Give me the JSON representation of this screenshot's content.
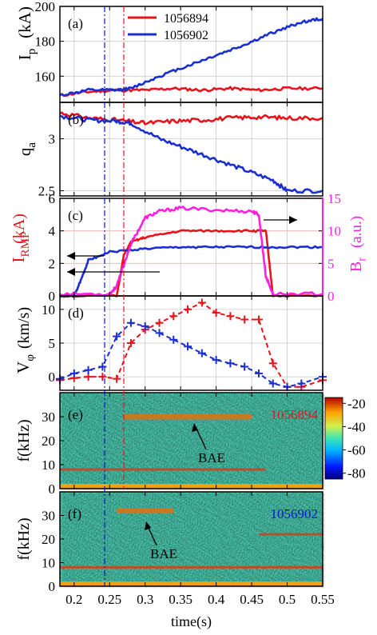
{
  "colors": {
    "red": "#e8141c",
    "blue": "#1a2fd0",
    "magenta": "#ff1fe0",
    "navy": "#0a17c8",
    "black": "#000000",
    "grid": "#c8c8c8",
    "refline": "#f2b8b8"
  },
  "chart_data": [
    {
      "type": "line",
      "panel_label": "(a)",
      "ylabel": "I_p(kA)",
      "ylim": [
        145,
        200
      ],
      "yticks": [
        "160",
        "180",
        "200"
      ],
      "legend": [
        "1056894",
        "1056902"
      ],
      "series": [
        {
          "name": "1056894",
          "color": "#e8141c",
          "x": [
            0.18,
            0.22,
            0.26,
            0.3,
            0.34,
            0.38,
            0.42,
            0.46,
            0.5,
            0.55
          ],
          "y": [
            149,
            151,
            152,
            152,
            153,
            152,
            153,
            152,
            153,
            153
          ]
        },
        {
          "name": "1056902",
          "color": "#1a2fd0",
          "x": [
            0.18,
            0.22,
            0.26,
            0.28,
            0.32,
            0.36,
            0.4,
            0.44,
            0.48,
            0.52,
            0.55
          ],
          "y": [
            149,
            152,
            152,
            153,
            160,
            166,
            172,
            178,
            185,
            191,
            193
          ]
        }
      ]
    },
    {
      "type": "line",
      "panel_label": "(b)",
      "ylabel": "q_a",
      "ylim": [
        2.45,
        3.35
      ],
      "yticks": [
        "2.5",
        "3"
      ],
      "series": [
        {
          "name": "1056894",
          "color": "#e8141c",
          "x": [
            0.18,
            0.22,
            0.26,
            0.3,
            0.34,
            0.38,
            0.42,
            0.46,
            0.5,
            0.55
          ],
          "y": [
            3.25,
            3.2,
            3.18,
            3.15,
            3.17,
            3.18,
            3.2,
            3.21,
            3.2,
            3.2
          ]
        },
        {
          "name": "1056902",
          "color": "#1a2fd0",
          "x": [
            0.18,
            0.22,
            0.26,
            0.28,
            0.32,
            0.36,
            0.4,
            0.44,
            0.48,
            0.5,
            0.55
          ],
          "y": [
            3.22,
            3.18,
            3.17,
            3.15,
            3.0,
            2.9,
            2.8,
            2.7,
            2.6,
            2.5,
            2.5
          ]
        }
      ]
    },
    {
      "type": "line",
      "panel_label": "(c)",
      "ylabel": "I_RMP(kA)",
      "ylabel_right": "B_r(a.u.)",
      "ylim": [
        0,
        6
      ],
      "ylim_right": [
        0,
        15
      ],
      "yticks": [
        "0",
        "2",
        "4",
        "6"
      ],
      "yticks_right": [
        "0",
        "5",
        "10",
        "15"
      ],
      "series": [
        {
          "name": "I_RMP 1056894",
          "color": "#e8141c",
          "x": [
            0.18,
            0.26,
            0.27,
            0.28,
            0.3,
            0.35,
            0.4,
            0.45,
            0.47,
            0.48,
            0.55
          ],
          "y": [
            0,
            0,
            2.5,
            3.3,
            3.6,
            4.0,
            4.0,
            4.0,
            4.0,
            0,
            0
          ]
        },
        {
          "name": "I_RMP 1056902",
          "color": "#1a2fd0",
          "x": [
            0.18,
            0.2,
            0.21,
            0.22,
            0.25,
            0.3,
            0.35,
            0.4,
            0.45,
            0.5,
            0.55
          ],
          "y": [
            0,
            0,
            1.0,
            2.2,
            2.7,
            2.9,
            3.0,
            3.0,
            3.0,
            3.0,
            3.0
          ]
        },
        {
          "name": "B_r",
          "color": "#ff1fe0",
          "axis": "right",
          "x": [
            0.18,
            0.25,
            0.26,
            0.28,
            0.3,
            0.32,
            0.35,
            0.4,
            0.45,
            0.46,
            0.47,
            0.48,
            0.55
          ],
          "y": [
            0.3,
            0.3,
            1.5,
            8.0,
            12.0,
            13.0,
            13.5,
            13.2,
            13.0,
            12.5,
            3.0,
            0.3,
            0.3
          ]
        }
      ]
    },
    {
      "type": "line",
      "panel_label": "(d)",
      "ylabel": "V_φ(km/s)",
      "ylim": [
        -2,
        12
      ],
      "yticks": [
        "0",
        "5",
        "10"
      ],
      "series": [
        {
          "name": "1056894",
          "color": "#e8141c",
          "x": [
            0.18,
            0.2,
            0.22,
            0.24,
            0.26,
            0.28,
            0.3,
            0.32,
            0.34,
            0.36,
            0.38,
            0.4,
            0.42,
            0.44,
            0.46,
            0.48,
            0.5,
            0.52,
            0.55
          ],
          "y": [
            -0.5,
            -0.2,
            0.0,
            0.0,
            -0.3,
            5.0,
            7.0,
            8.0,
            9.0,
            10.0,
            11.0,
            9.5,
            9.0,
            8.5,
            8.5,
            2.0,
            -1.5,
            -1.5,
            -0.5
          ]
        },
        {
          "name": "1056902",
          "color": "#1a2fd0",
          "x": [
            0.18,
            0.2,
            0.22,
            0.24,
            0.26,
            0.28,
            0.3,
            0.32,
            0.34,
            0.36,
            0.38,
            0.4,
            0.42,
            0.44,
            0.46,
            0.48,
            0.5,
            0.52,
            0.55
          ],
          "y": [
            -0.3,
            0.5,
            1.0,
            1.5,
            6.0,
            8.0,
            7.5,
            6.5,
            5.5,
            4.5,
            3.5,
            2.5,
            2.0,
            1.5,
            0.5,
            -1.0,
            -1.5,
            -1.0,
            0.0
          ]
        }
      ]
    },
    {
      "type": "heatmap",
      "panel_label": "(e)",
      "ylabel": "f(kHz)",
      "ylim": [
        0,
        40
      ],
      "yticks": [
        "0",
        "10",
        "20",
        "30"
      ],
      "shot": "1056894",
      "annotation": "BAE",
      "colorbar": {
        "range": [
          -85,
          -15
        ],
        "ticks": [
          "-20",
          "-40",
          "-60",
          "-80"
        ]
      },
      "features": [
        {
          "name": "BAE",
          "x": [
            0.27,
            0.45
          ],
          "f": 30
        },
        {
          "name": "low-frequency line",
          "x": [
            0.18,
            0.47
          ],
          "f": 8
        }
      ]
    },
    {
      "type": "heatmap",
      "panel_label": "(f)",
      "ylabel": "f(kHz)",
      "xlabel": "time(s)",
      "ylim": [
        0,
        40
      ],
      "yticks": [
        "0",
        "10",
        "20",
        "30"
      ],
      "xticks": [
        "0.2",
        "0.25",
        "0.3",
        "0.35",
        "0.4",
        "0.45",
        "0.5",
        "0.55"
      ],
      "xlim": [
        0.18,
        0.55
      ],
      "shot": "1056902",
      "annotation": "BAE",
      "features": [
        {
          "name": "BAE",
          "x": [
            0.26,
            0.34
          ],
          "f": 32
        },
        {
          "name": "high-frequency mode",
          "x": [
            0.46,
            0.55
          ],
          "f": 22
        },
        {
          "name": "low-frequency line",
          "x": [
            0.18,
            0.55
          ],
          "f": 8
        }
      ]
    }
  ],
  "vlines": {
    "blue_t": 0.243,
    "red_t": 0.27
  }
}
